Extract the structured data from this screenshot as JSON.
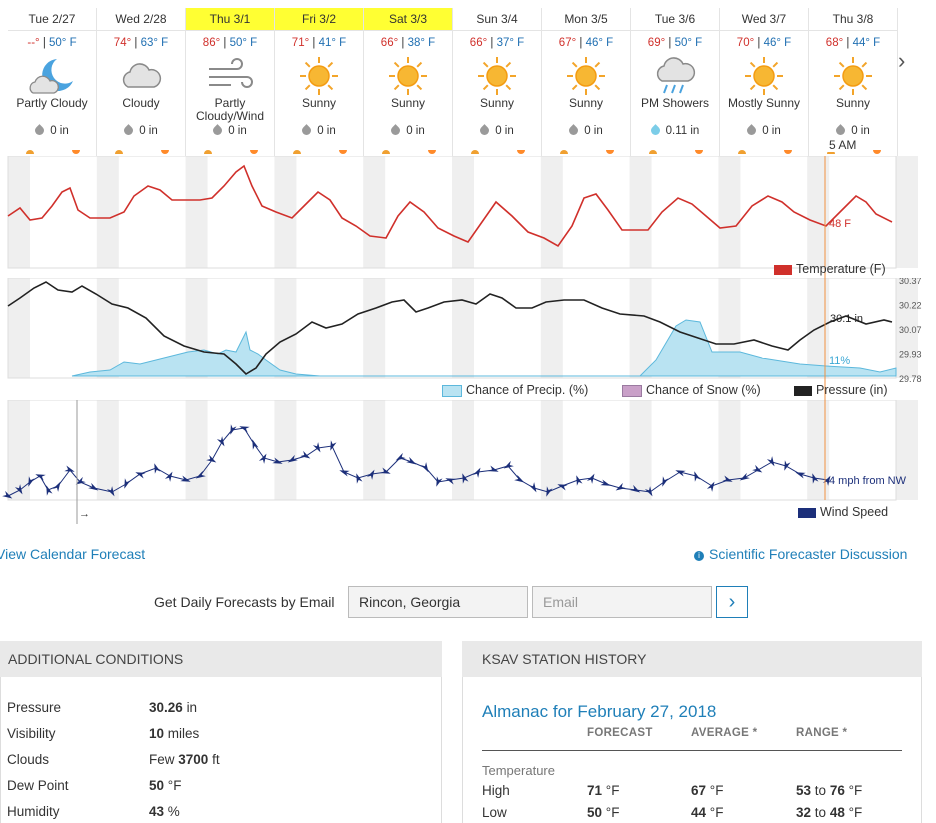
{
  "forecast": {
    "days": [
      {
        "name": "Tue 2/27",
        "hi": "--°",
        "lo": "50° F",
        "icon": "partly-cloudy-night-icon",
        "cond": "Partly Cloudy",
        "precip": "0 in",
        "highlight": false
      },
      {
        "name": "Wed 2/28",
        "hi": "74°",
        "lo": "63° F",
        "icon": "cloud-icon",
        "cond": "Cloudy",
        "precip": "0 in",
        "highlight": false
      },
      {
        "name": "Thu 3/1",
        "hi": "86°",
        "lo": "50° F",
        "icon": "wind-icon",
        "cond": "Partly Cloudy/Wind",
        "precip": "0 in",
        "highlight": true
      },
      {
        "name": "Fri 3/2",
        "hi": "71°",
        "lo": "41° F",
        "icon": "sun-icon",
        "cond": "Sunny",
        "precip": "0 in",
        "highlight": true
      },
      {
        "name": "Sat 3/3",
        "hi": "66°",
        "lo": "38° F",
        "icon": "sun-icon",
        "cond": "Sunny",
        "precip": "0 in",
        "highlight": true
      },
      {
        "name": "Sun 3/4",
        "hi": "66°",
        "lo": "37° F",
        "icon": "sun-icon",
        "cond": "Sunny",
        "precip": "0 in",
        "highlight": false
      },
      {
        "name": "Mon 3/5",
        "hi": "67°",
        "lo": "46° F",
        "icon": "sun-icon",
        "cond": "Sunny",
        "precip": "0 in",
        "highlight": false
      },
      {
        "name": "Tue 3/6",
        "hi": "69°",
        "lo": "50° F",
        "icon": "rain-icon",
        "cond": "PM Showers",
        "precip": "0.11 in",
        "highlight": false
      },
      {
        "name": "Wed 3/7",
        "hi": "70°",
        "lo": "46° F",
        "icon": "sun-icon",
        "cond": "Mostly Sunny",
        "precip": "0 in",
        "highlight": false
      },
      {
        "name": "Thu 3/8",
        "hi": "68°",
        "lo": "44° F",
        "icon": "sun-icon",
        "cond": "Sunny",
        "precip": "0 in",
        "highlight": false
      }
    ],
    "hover_time": "5 AM"
  },
  "charts": {
    "temperature": {
      "legend": "Temperature (F)",
      "current_label": "48 F",
      "color": "#d0302b"
    },
    "pressure": {
      "legend_precip": "Chance of Precip. (%)",
      "legend_snow": "Chance of Snow (%)",
      "legend_pressure": "Pressure (in)",
      "current_pressure": "30.1 in",
      "current_precip": "11%",
      "right_ticks": [
        "30.37",
        "30.22",
        "30.07",
        "29.93",
        "29.78"
      ]
    },
    "wind": {
      "legend": "Wind Speed",
      "current_label": "4 mph from NW",
      "arrow_text": "→"
    }
  },
  "links": {
    "calendar": "View Calendar Forecast",
    "discussion": "Scientific Forecaster Discussion"
  },
  "email": {
    "label": "Get Daily Forecasts by Email",
    "location": "Rincon, Georgia",
    "placeholder": "Email"
  },
  "conditions": {
    "title": "ADDITIONAL CONDITIONS",
    "rows": [
      {
        "label": "Pressure",
        "value": "30.26",
        "unit": "in"
      },
      {
        "label": "Visibility",
        "value": "10",
        "unit": "miles"
      },
      {
        "label": "Clouds",
        "prefix": "Few",
        "value": "3700",
        "unit": "ft"
      },
      {
        "label": "Dew Point",
        "value": "50",
        "unit": "°F"
      },
      {
        "label": "Humidity",
        "value": "43",
        "unit": "%"
      }
    ]
  },
  "history": {
    "title": "KSAV STATION HISTORY",
    "almanac": "Almanac for February 27, 2018",
    "cols": [
      "FORECAST",
      "AVERAGE *",
      "RANGE *"
    ],
    "section": "Temperature",
    "rows": [
      {
        "label": "High",
        "forecast": "71",
        "average": "67",
        "range_lo": "53",
        "range_hi": "76",
        "unit": "°F",
        "to": "to"
      },
      {
        "label": "Low",
        "forecast": "50",
        "average": "44",
        "range_lo": "32",
        "range_hi": "48",
        "unit": "°F",
        "to": "to"
      }
    ]
  }
}
